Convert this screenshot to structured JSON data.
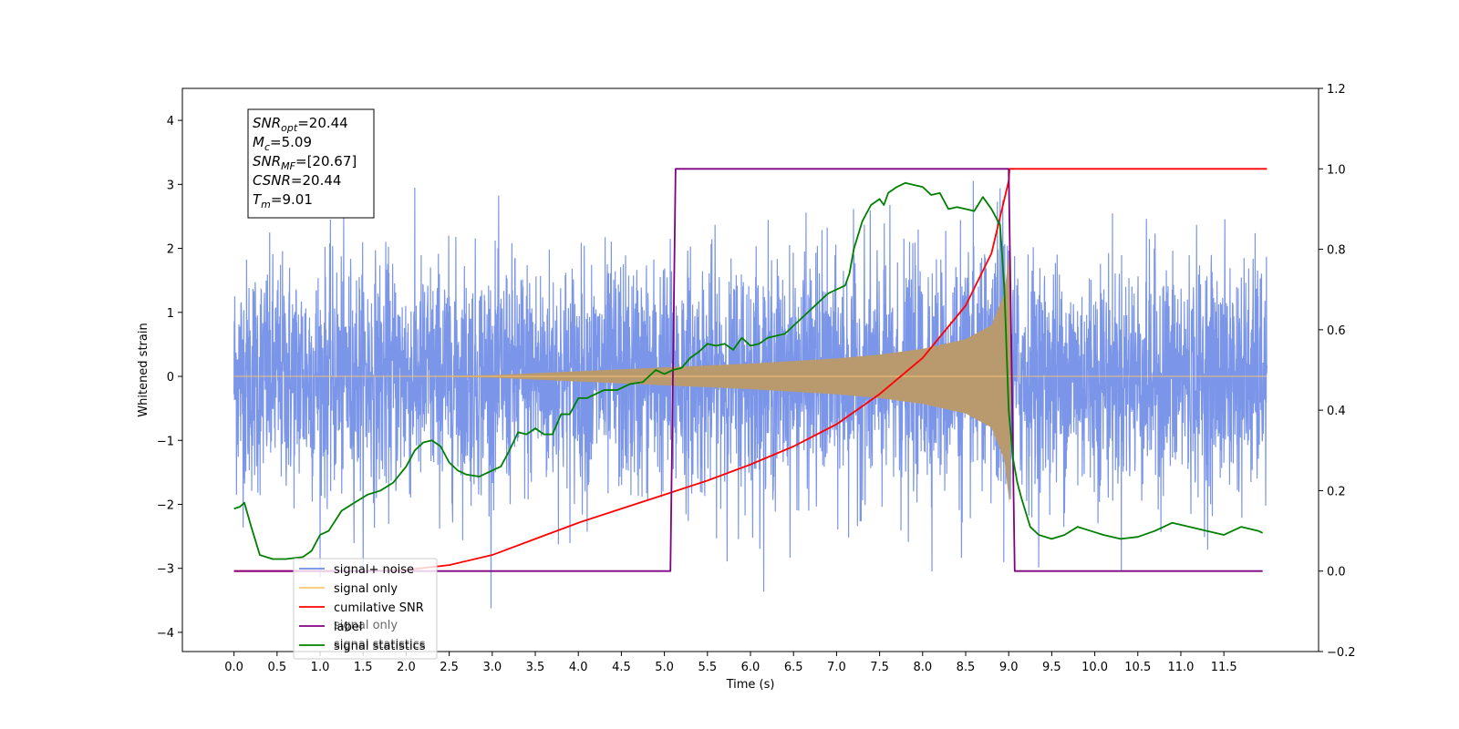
{
  "chart_data": {
    "type": "line",
    "xlabel": "Time (s)",
    "ylabel": "Whitened strain",
    "xlim": [
      -0.6,
      12.6
    ],
    "ylim": [
      -4.3,
      4.5
    ],
    "ylim_right": [
      -0.2,
      1.2
    ],
    "x_ticks": [
      0.0,
      0.5,
      1.0,
      1.5,
      2.0,
      2.5,
      3.0,
      3.5,
      4.0,
      4.5,
      5.0,
      5.5,
      6.0,
      6.5,
      7.0,
      7.5,
      8.0,
      8.5,
      9.0,
      9.5,
      10.0,
      10.5,
      11.0,
      11.5
    ],
    "x_tick_labels": [
      "0.0",
      "0.5",
      "1.0",
      "1.5",
      "2.0",
      "2.5",
      "3.0",
      "3.5",
      "4.0",
      "4.5",
      "5.0",
      "5.5",
      "6.0",
      "6.5",
      "7.0",
      "7.5",
      "8.0",
      "8.5",
      "9.0",
      "9.5",
      "10.0",
      "10.5",
      "11.0",
      "11.5"
    ],
    "y_ticks": [
      -4,
      -3,
      -2,
      -1,
      0,
      1,
      2,
      3,
      4
    ],
    "y_tick_labels": [
      "−4",
      "−3",
      "−2",
      "−1",
      "0",
      "1",
      "2",
      "3",
      "4"
    ],
    "y_ticks_right": [
      -0.2,
      0.0,
      0.2,
      0.4,
      0.6,
      0.8,
      1.0,
      1.2
    ],
    "y_tick_labels_right": [
      "−0.2",
      "0.0",
      "0.2",
      "0.4",
      "0.6",
      "0.8",
      "1.0",
      "1.2"
    ],
    "annotation": {
      "lines": [
        {
          "main": "SNR",
          "sub": "opt",
          "rest": "=20.44"
        },
        {
          "main": "M",
          "sub": "c",
          "rest": "=5.09"
        },
        {
          "main": "SNR",
          "sub": "MF",
          "rest": "=[20.67]"
        },
        {
          "main": "CSNR",
          "sub": "",
          "rest": "=20.44"
        },
        {
          "main": "T",
          "sub": "m",
          "rest": "=9.01"
        }
      ]
    },
    "legend": {
      "position": "lower-left",
      "entries": [
        {
          "label": "signal+ noise",
          "color": "#6f8de6"
        },
        {
          "label": "signal only",
          "color": "#ffc870"
        },
        {
          "label": "cumilative SNR",
          "color": "#ff0000"
        },
        {
          "label": "label",
          "color": "#800080"
        },
        {
          "label": "signal statistics",
          "color": "#008000"
        }
      ],
      "ghost_labels": [
        "signal only",
        "signal statistics"
      ]
    },
    "series": [
      {
        "name": "signal+ noise",
        "axis": "left",
        "color": "#7b95e8",
        "kind": "noise",
        "x_range": [
          0.0,
          12.0
        ],
        "sigma": 0.9,
        "peak_min": -3.9,
        "peak_max": 4.1
      },
      {
        "name": "signal only",
        "axis": "left",
        "color": "#ffc870",
        "kind": "chirp",
        "x_range": [
          0.0,
          12.0
        ],
        "merger": 9.01,
        "envelope": {
          "x": [
            0.0,
            2.0,
            3.0,
            4.0,
            5.0,
            6.0,
            7.0,
            7.5,
            8.0,
            8.5,
            8.8,
            8.95,
            9.01,
            9.03,
            9.05
          ],
          "y": [
            0.0,
            0.0,
            0.02,
            0.08,
            0.14,
            0.2,
            0.28,
            0.34,
            0.43,
            0.58,
            0.8,
            1.3,
            2.0,
            0.2,
            0.0
          ]
        }
      },
      {
        "name": "cumilative SNR",
        "axis": "right",
        "color": "#ff0000",
        "x": [
          0.0,
          1.5,
          2.0,
          2.5,
          3.0,
          3.5,
          4.0,
          4.5,
          5.0,
          5.5,
          6.0,
          6.5,
          7.0,
          7.5,
          8.0,
          8.5,
          8.8,
          9.0,
          9.01,
          12.0
        ],
        "y": [
          0.0,
          0.0,
          0.003,
          0.015,
          0.04,
          0.08,
          0.12,
          0.155,
          0.19,
          0.225,
          0.265,
          0.31,
          0.365,
          0.44,
          0.53,
          0.66,
          0.79,
          0.97,
          1.0,
          1.0
        ]
      },
      {
        "name": "label",
        "axis": "right",
        "color": "#800080",
        "x": [
          0.0,
          5.07,
          5.13,
          9.0,
          9.07,
          11.95
        ],
        "y": [
          0.0,
          0.0,
          1.0,
          1.0,
          0.0,
          0.0
        ]
      },
      {
        "name": "signal statistics",
        "axis": "right",
        "color": "#008000",
        "x": [
          0.0,
          0.07,
          0.12,
          0.2,
          0.3,
          0.45,
          0.6,
          0.8,
          0.9,
          1.0,
          1.1,
          1.25,
          1.4,
          1.55,
          1.7,
          1.85,
          2.0,
          2.1,
          2.2,
          2.3,
          2.4,
          2.5,
          2.6,
          2.7,
          2.85,
          3.0,
          3.1,
          3.2,
          3.3,
          3.4,
          3.5,
          3.6,
          3.7,
          3.8,
          3.9,
          4.0,
          4.1,
          4.2,
          4.3,
          4.45,
          4.6,
          4.75,
          4.9,
          5.0,
          5.1,
          5.2,
          5.3,
          5.4,
          5.5,
          5.6,
          5.7,
          5.8,
          5.9,
          6.0,
          6.1,
          6.2,
          6.4,
          6.6,
          6.8,
          6.9,
          7.0,
          7.1,
          7.15,
          7.2,
          7.3,
          7.4,
          7.5,
          7.55,
          7.6,
          7.7,
          7.8,
          7.9,
          8.0,
          8.1,
          8.2,
          8.3,
          8.4,
          8.5,
          8.6,
          8.7,
          8.8,
          8.9,
          8.95,
          9.0,
          9.05,
          9.1,
          9.15,
          9.25,
          9.35,
          9.5,
          9.65,
          9.8,
          9.95,
          10.1,
          10.3,
          10.5,
          10.7,
          10.9,
          11.1,
          11.3,
          11.5,
          11.7,
          11.9,
          11.95
        ],
        "y": [
          0.155,
          0.16,
          0.17,
          0.11,
          0.04,
          0.03,
          0.03,
          0.035,
          0.05,
          0.09,
          0.1,
          0.15,
          0.17,
          0.19,
          0.2,
          0.22,
          0.26,
          0.3,
          0.32,
          0.325,
          0.31,
          0.27,
          0.25,
          0.24,
          0.235,
          0.25,
          0.26,
          0.3,
          0.345,
          0.34,
          0.355,
          0.34,
          0.34,
          0.39,
          0.39,
          0.43,
          0.43,
          0.44,
          0.45,
          0.45,
          0.465,
          0.47,
          0.5,
          0.49,
          0.5,
          0.505,
          0.53,
          0.545,
          0.565,
          0.56,
          0.565,
          0.55,
          0.58,
          0.56,
          0.565,
          0.58,
          0.59,
          0.63,
          0.67,
          0.69,
          0.7,
          0.71,
          0.74,
          0.8,
          0.87,
          0.91,
          0.925,
          0.91,
          0.94,
          0.955,
          0.965,
          0.96,
          0.955,
          0.935,
          0.94,
          0.9,
          0.905,
          0.9,
          0.895,
          0.93,
          0.9,
          0.86,
          0.7,
          0.4,
          0.28,
          0.22,
          0.18,
          0.11,
          0.09,
          0.08,
          0.09,
          0.11,
          0.1,
          0.09,
          0.08,
          0.085,
          0.1,
          0.12,
          0.11,
          0.1,
          0.09,
          0.11,
          0.1,
          0.095
        ]
      }
    ]
  }
}
